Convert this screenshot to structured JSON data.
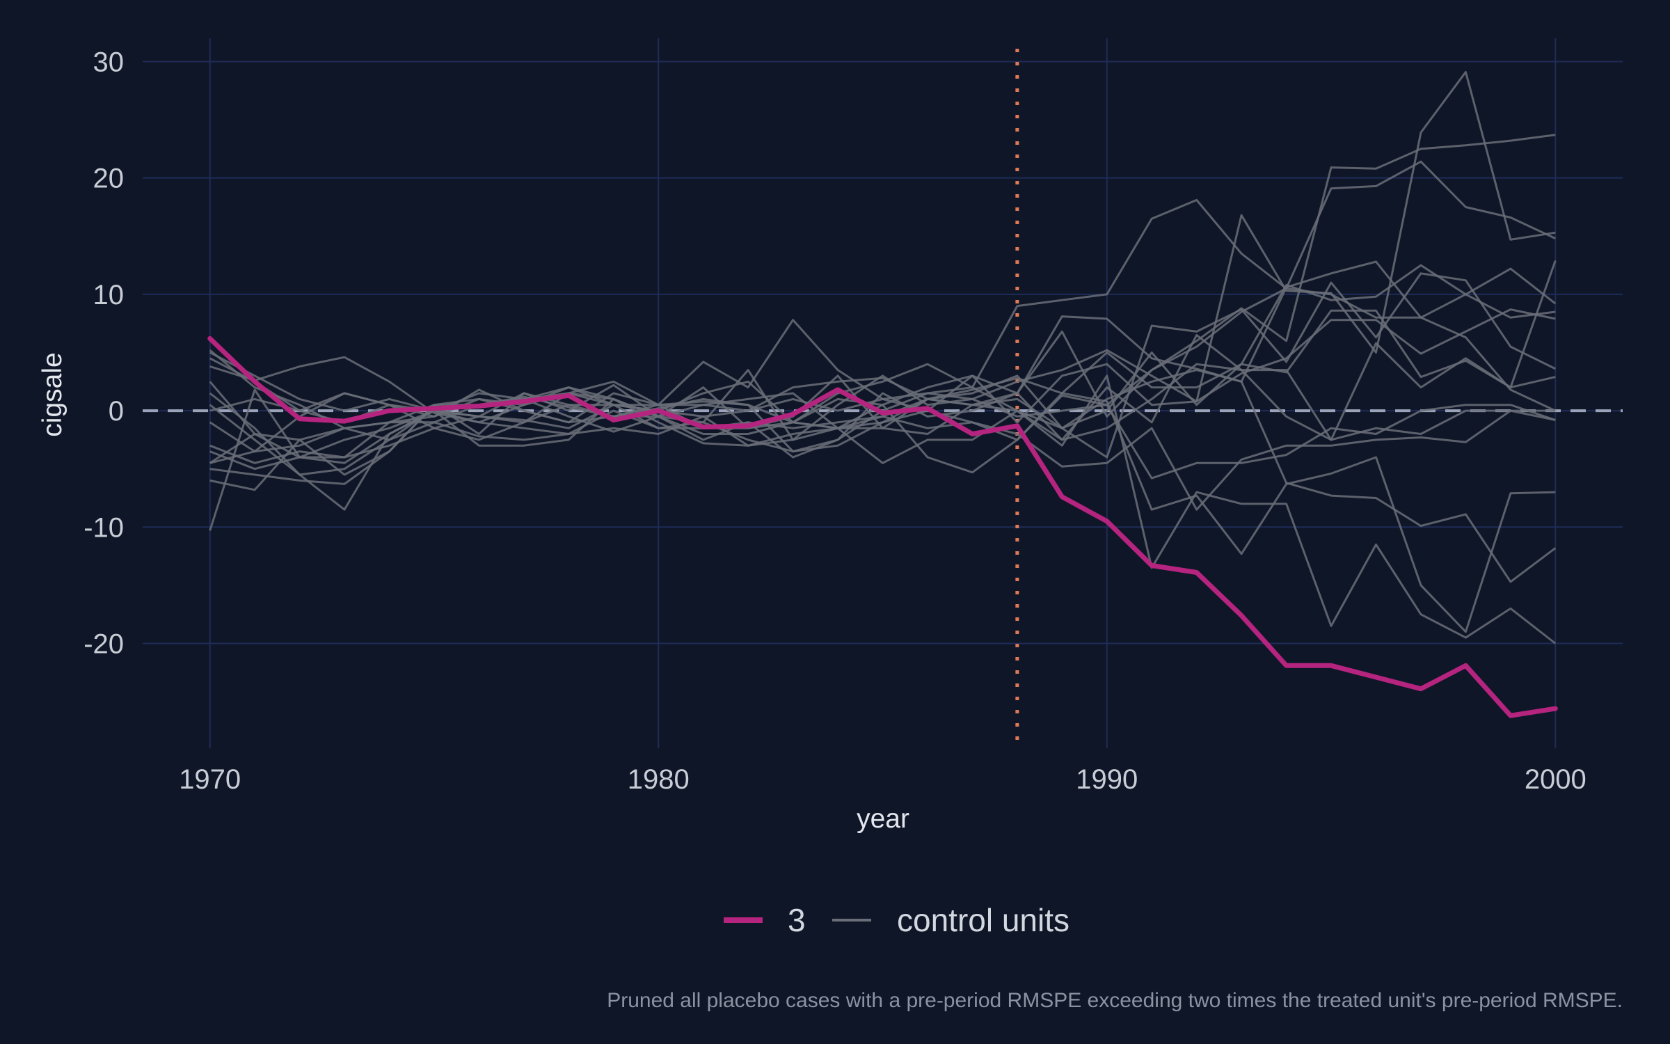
{
  "chart_data": {
    "type": "line",
    "xlabel": "year",
    "ylabel": "cigsale",
    "xlim": [
      1968.5,
      2001.5
    ],
    "ylim": [
      -29,
      32
    ],
    "x_ticks": [
      1970,
      1980,
      1990,
      2000
    ],
    "y_ticks": [
      30,
      20,
      10,
      0,
      -10,
      -20
    ],
    "grid": true,
    "treatment_year": 1988,
    "reference_line": 0,
    "legend": {
      "position": "bottom",
      "entries": [
        {
          "label": "3",
          "color": "#b5247e"
        },
        {
          "label": "control units",
          "color": "#6a6e78"
        }
      ]
    },
    "caption": "Pruned all placebo cases with a pre-period RMSPE exceeding two times the treated unit's pre-period RMSPE.",
    "x": [
      1970,
      1971,
      1972,
      1973,
      1974,
      1975,
      1976,
      1977,
      1978,
      1979,
      1980,
      1981,
      1982,
      1983,
      1984,
      1985,
      1986,
      1987,
      1988,
      1989,
      1990,
      1991,
      1992,
      1993,
      1994,
      1995,
      1996,
      1997,
      1998,
      1999,
      2000
    ],
    "treated": {
      "name": "3",
      "color": "#b5247e",
      "values": [
        6.2,
        2.5,
        -0.7,
        -0.9,
        0.0,
        0.2,
        0.4,
        0.8,
        1.3,
        -0.8,
        0.0,
        -1.4,
        -1.3,
        -0.3,
        1.8,
        -0.2,
        0.2,
        -2.0,
        -1.3,
        -7.4,
        -9.5,
        -13.3,
        -13.9,
        -17.6,
        -21.9,
        -21.9,
        -22.9,
        -23.9,
        -21.9,
        -26.2,
        -25.6
      ]
    },
    "controls": {
      "name": "control units",
      "color": "#6a6e78",
      "series": [
        [
          5.2,
          2.0,
          0.5,
          -1.5,
          -2.5,
          0.2,
          0.5,
          1.2,
          0.3,
          -0.5,
          0.2,
          1.0,
          0.5,
          -1.0,
          1.5,
          2.5,
          4.0,
          2.0,
          9.0,
          9.5,
          10.0,
          16.5,
          18.1,
          13.5,
          10.5,
          10.0,
          8.0,
          8.0,
          10.0,
          8.0,
          8.5
        ],
        [
          4.5,
          2.5,
          0.0,
          -1.0,
          0.5,
          -0.5,
          1.0,
          0.5,
          2.0,
          1.0,
          -0.5,
          0.5,
          0.0,
          2.0,
          2.5,
          2.8,
          1.0,
          0.5,
          1.5,
          6.8,
          -0.5,
          3.5,
          6.0,
          8.8,
          6.0,
          20.9,
          20.8,
          22.5,
          22.8,
          23.2,
          23.7
        ],
        [
          3.8,
          2.6,
          3.8,
          4.6,
          2.5,
          -0.2,
          -1.0,
          0.5,
          1.5,
          2.5,
          0.5,
          0.5,
          1.0,
          1.5,
          -1.5,
          -0.5,
          1.0,
          1.5,
          3.0,
          -1.5,
          -4.0,
          7.3,
          6.8,
          8.7,
          4.2,
          11.0,
          6.3,
          11.8,
          11.2,
          5.5,
          3.6
        ],
        [
          -4.5,
          -3.5,
          -3.0,
          -1.5,
          -1.0,
          -0.5,
          1.8,
          0.0,
          -1.0,
          1.5,
          0.5,
          4.2,
          2.0,
          7.8,
          3.5,
          1.0,
          0.0,
          3.0,
          -1.0,
          3.0,
          4.0,
          0.5,
          0.8,
          16.8,
          10.3,
          10.1,
          5.0,
          23.9,
          29.1,
          14.7,
          15.3
        ],
        [
          1.5,
          -1.5,
          -5.5,
          -5.0,
          -2.5,
          -1.0,
          0.5,
          1.0,
          2.0,
          0.5,
          -1.5,
          -1.0,
          3.5,
          -2.5,
          0.5,
          3.0,
          0.5,
          1.0,
          2.5,
          3.5,
          5.2,
          3.0,
          0.8,
          3.2,
          4.5,
          7.8,
          7.8,
          4.9,
          6.8,
          8.7,
          7.9
        ],
        [
          -6.0,
          -6.8,
          -2.5,
          -5.5,
          -3.5,
          0.5,
          -2.0,
          1.5,
          0.0,
          2.2,
          -0.5,
          2.0,
          -1.5,
          -0.5,
          3.0,
          -1.5,
          1.0,
          0.5,
          1.0,
          -1.5,
          0.0,
          5.0,
          0.5,
          4.0,
          10.8,
          9.5,
          9.8,
          12.5,
          10.0,
          12.2,
          9.2
        ],
        [
          -10.3,
          1.8,
          -4.0,
          -4.5,
          -2.0,
          0.0,
          -0.5,
          -0.8,
          -1.5,
          0.5,
          0.5,
          0.8,
          0.5,
          -3.5,
          -2.5,
          1.5,
          -0.5,
          0.0,
          1.5,
          8.1,
          7.9,
          4.5,
          3.6,
          2.5,
          10.6,
          11.8,
          12.8,
          8.0,
          6.3,
          1.8,
          0.0
        ],
        [
          2.5,
          -2.0,
          -4.0,
          -4.0,
          -1.0,
          0.5,
          1.0,
          0.0,
          -1.0,
          -0.5,
          0.5,
          -1.5,
          -1.5,
          -1.0,
          -1.5,
          0.5,
          -4.0,
          -5.3,
          -2.5,
          1.3,
          0.5,
          -5.8,
          -4.5,
          -4.5,
          -3.8,
          -1.5,
          -2.0,
          0.0,
          0.5,
          0.5,
          -0.8
        ],
        [
          -5.0,
          -5.5,
          -6.0,
          -6.3,
          -3.5,
          0.5,
          0.5,
          1.0,
          -0.5,
          -1.8,
          -0.5,
          -2.5,
          -1.0,
          -4.0,
          -2.5,
          0.0,
          1.5,
          2.0,
          0.0,
          -3.0,
          3.0,
          -13.5,
          -7.0,
          -8.0,
          -8.0,
          -18.5,
          -11.5,
          -17.5,
          -19.5,
          -17.0,
          -20.0
        ],
        [
          -3.0,
          -4.5,
          -3.5,
          -4.0,
          -3.0,
          -1.5,
          -0.5,
          1.5,
          0.5,
          -0.5,
          -0.5,
          -1.0,
          -2.5,
          -3.5,
          -3.0,
          -1.0,
          1.0,
          1.8,
          2.8,
          1.5,
          0.8,
          -8.5,
          -7.3,
          -12.3,
          -6.3,
          -5.4,
          -4.0,
          -15.0,
          -19.0,
          -7.1,
          -7.0
        ],
        [
          0.5,
          -2.5,
          -5.5,
          -8.5,
          -2.0,
          0.0,
          -3.0,
          -3.0,
          -2.5,
          1.0,
          -0.5,
          -2.0,
          -2.0,
          -1.0,
          -1.5,
          -4.5,
          -2.5,
          -2.5,
          0.0,
          -2.5,
          2.0,
          -1.0,
          6.5,
          3.5,
          -0.5,
          -2.5,
          -1.5,
          -2.0,
          0.0,
          0.0,
          0.0
        ],
        [
          -1.0,
          -3.5,
          -0.5,
          1.5,
          0.5,
          -1.5,
          -2.5,
          -1.0,
          1.5,
          1.0,
          -1.0,
          -2.8,
          -3.0,
          -2.0,
          -1.5,
          -1.0,
          0.0,
          -1.0,
          -2.0,
          -4.8,
          -4.5,
          -1.5,
          -8.5,
          -4.2,
          -3.0,
          -3.0,
          -2.5,
          -2.3,
          -2.7,
          0.0,
          -0.8
        ],
        [
          -4.5,
          -2.0,
          -2.5,
          -1.5,
          -1.0,
          -1.0,
          -2.2,
          -2.5,
          -2.0,
          -1.5,
          -2.0,
          -0.5,
          -3.0,
          -2.5,
          -1.5,
          -1.5,
          -2.0,
          0.5,
          0.0,
          -1.5,
          1.0,
          2.5,
          3.5,
          2.5,
          -6.2,
          -7.3,
          -7.5,
          -9.9,
          -8.9,
          -14.7,
          -11.8
        ],
        [
          -3.5,
          -5.0,
          -4.0,
          -2.5,
          -1.5,
          0.0,
          -1.0,
          -1.5,
          -2.0,
          0.0,
          -1.5,
          -1.5,
          -1.0,
          -1.5,
          -1.0,
          -0.5,
          -1.5,
          -1.0,
          -2.5,
          1.5,
          5.0,
          2.0,
          2.0,
          4.0,
          3.3,
          8.6,
          8.6,
          2.9,
          4.3,
          2.0,
          2.9
        ],
        [
          5.0,
          3.0,
          1.0,
          0.0,
          1.0,
          0.0,
          -0.5,
          -1.0,
          0.5,
          0.5,
          0.0,
          1.5,
          2.5,
          -1.0,
          1.0,
          0.5,
          2.0,
          3.0,
          1.5,
          -2.5,
          -1.5,
          1.0,
          4.0,
          3.5,
          3.5,
          -2.5,
          5.8,
          2.0,
          4.5,
          2.0,
          12.9
        ],
        [
          0.0,
          1.0,
          0.0,
          1.5,
          0.5,
          0.0,
          1.5,
          1.0,
          1.5,
          0.5,
          0.0,
          -0.5,
          0.0,
          1.0,
          0.0,
          1.0,
          1.5,
          1.0,
          -0.5,
          0.0,
          0.5,
          3.5,
          5.5,
          8.5,
          10.5,
          19.1,
          19.3,
          21.4,
          17.5,
          16.6,
          14.8
        ]
      ]
    }
  }
}
